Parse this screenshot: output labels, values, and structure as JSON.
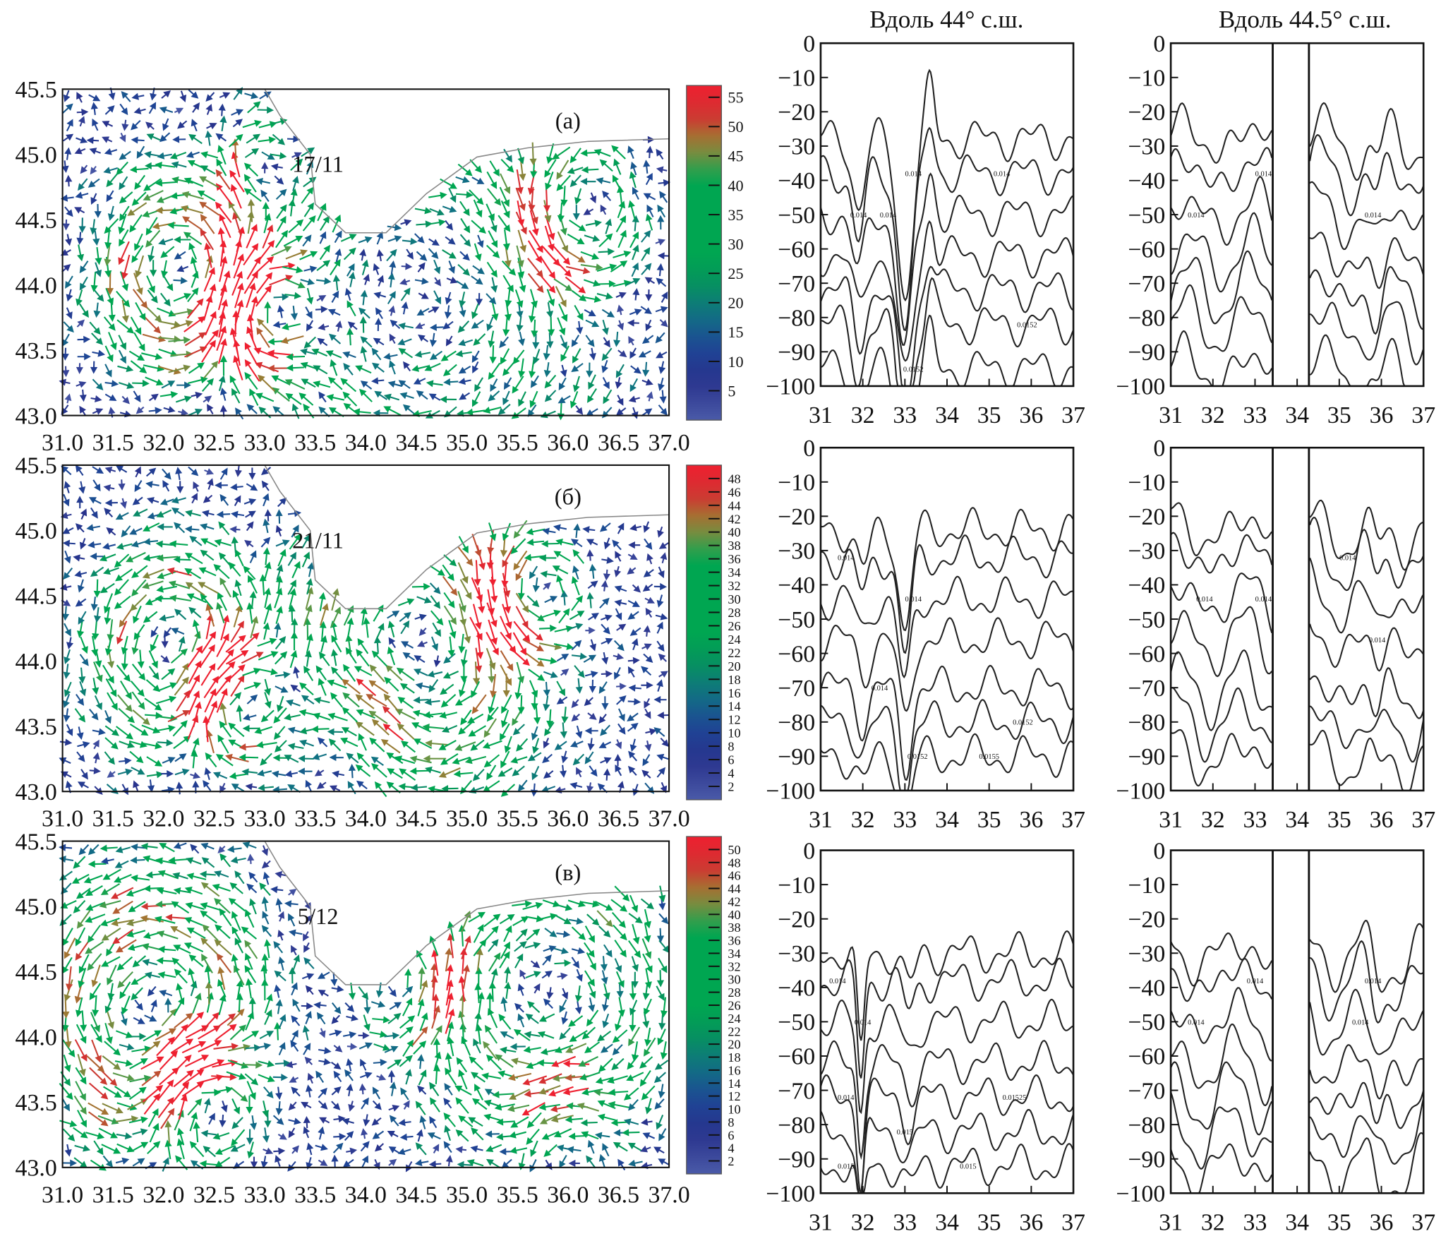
{
  "columns": {
    "col2_title": "Вдоль 44°  с.ш.",
    "col3_title": "Вдоль 44.5°  с.ш."
  },
  "colors": {
    "low": "#4a5aa8",
    "mid": "#00a651",
    "high": "#ee2030",
    "contour": "#222222",
    "coast": "#888888"
  },
  "chart_data": [
    {
      "type": "vector-field",
      "panel_label": "(а)",
      "date": "17/11",
      "xlim": [
        31.0,
        37.0
      ],
      "ylim": [
        43.0,
        45.5
      ],
      "xticks": [
        "31.0",
        "31.5",
        "32.0",
        "32.5",
        "33.0",
        "33.5",
        "34.0",
        "34.5",
        "35.0",
        "35.5",
        "36.0",
        "36.5",
        "37.0"
      ],
      "yticks": [
        "43.0",
        "43.5",
        "44.0",
        "44.5",
        "45.0",
        "45.5"
      ],
      "colorbar": {
        "range": [
          0,
          57
        ],
        "ticks": [
          "5",
          "10",
          "15",
          "20",
          "25",
          "30",
          "35",
          "40",
          "45",
          "50",
          "55"
        ]
      }
    },
    {
      "type": "vector-field",
      "panel_label": "(б)",
      "date": "21/11",
      "xlim": [
        31.0,
        37.0
      ],
      "ylim": [
        43.0,
        45.5
      ],
      "xticks": [
        "31.0",
        "31.5",
        "32.0",
        "32.5",
        "33.0",
        "33.5",
        "34.0",
        "34.5",
        "35.0",
        "35.5",
        "36.0",
        "36.5",
        "37.0"
      ],
      "yticks": [
        "43.0",
        "43.5",
        "44.0",
        "44.5",
        "45.0",
        "45.5"
      ],
      "colorbar": {
        "range": [
          0,
          50
        ],
        "ticks": [
          "2",
          "4",
          "6",
          "8",
          "10",
          "12",
          "14",
          "16",
          "18",
          "20",
          "22",
          "24",
          "26",
          "28",
          "30",
          "32",
          "34",
          "36",
          "38",
          "40",
          "42",
          "44",
          "46",
          "48"
        ]
      }
    },
    {
      "type": "vector-field",
      "panel_label": "(в)",
      "date": "5/12",
      "xlim": [
        31.0,
        37.0
      ],
      "ylim": [
        43.0,
        45.5
      ],
      "xticks": [
        "31.0",
        "31.5",
        "32.0",
        "32.5",
        "33.0",
        "33.5",
        "34.0",
        "34.5",
        "35.0",
        "35.5",
        "36.0",
        "36.5",
        "37.0"
      ],
      "yticks": [
        "43.0",
        "43.5",
        "44.0",
        "44.5",
        "45.0",
        "45.5"
      ],
      "colorbar": {
        "range": [
          0,
          52
        ],
        "ticks": [
          "2",
          "4",
          "6",
          "8",
          "10",
          "12",
          "14",
          "16",
          "18",
          "20",
          "22",
          "24",
          "26",
          "28",
          "30",
          "32",
          "34",
          "36",
          "38",
          "40",
          "42",
          "44",
          "46",
          "48",
          "50"
        ]
      }
    },
    {
      "type": "contour",
      "row": 1,
      "column": "44",
      "xlim": [
        31,
        37
      ],
      "ylim": [
        -100,
        0
      ],
      "xticks": [
        "31",
        "32",
        "33",
        "34",
        "35",
        "36",
        "37"
      ],
      "yticks": [
        "0",
        "−10",
        "−20",
        "−30",
        "−40",
        "−50",
        "−60",
        "−70",
        "−80",
        "−90",
        "−100"
      ],
      "contour_labels": [
        "0.014",
        "0.014",
        "0.014",
        "0.014",
        "0.0152",
        "0.0152"
      ]
    },
    {
      "type": "contour",
      "row": 1,
      "column": "44.5",
      "xlim": [
        31,
        37
      ],
      "ylim": [
        -100,
        0
      ],
      "xticks": [
        "31",
        "32",
        "33",
        "34",
        "35",
        "36",
        "37"
      ],
      "yticks": [
        "0",
        "−10",
        "−20",
        "−30",
        "−40",
        "−50",
        "−60",
        "−70",
        "−80",
        "−90",
        "−100"
      ],
      "contour_labels": [
        "0.014",
        "0.014",
        "0.014"
      ]
    },
    {
      "type": "contour",
      "row": 2,
      "column": "44",
      "xlim": [
        31,
        37
      ],
      "ylim": [
        -100,
        0
      ],
      "xticks": [
        "31",
        "32",
        "33",
        "34",
        "35",
        "36",
        "37"
      ],
      "yticks": [
        "0",
        "−10",
        "−20",
        "−30",
        "−40",
        "−50",
        "−60",
        "−70",
        "−80",
        "−90",
        "−100"
      ],
      "contour_labels": [
        "0.014",
        "0.014",
        "0.014",
        "0.0152",
        "0.0152",
        "0.0155"
      ]
    },
    {
      "type": "contour",
      "row": 2,
      "column": "44.5",
      "xlim": [
        31,
        37
      ],
      "ylim": [
        -100,
        0
      ],
      "xticks": [
        "31",
        "32",
        "33",
        "34",
        "35",
        "36",
        "37"
      ],
      "yticks": [
        "0",
        "−10",
        "−20",
        "−30",
        "−40",
        "−50",
        "−60",
        "−70",
        "−80",
        "−90",
        "−100"
      ],
      "contour_labels": [
        "0.014",
        "0.014",
        "0.014",
        "0.014"
      ]
    },
    {
      "type": "contour",
      "row": 3,
      "column": "44",
      "xlim": [
        31,
        37
      ],
      "ylim": [
        -100,
        0
      ],
      "xticks": [
        "31",
        "32",
        "33",
        "34",
        "35",
        "36",
        "37"
      ],
      "yticks": [
        "0",
        "−10",
        "−20",
        "−30",
        "−40",
        "−50",
        "−60",
        "−70",
        "−80",
        "−90",
        "−100"
      ],
      "contour_labels": [
        "0.014",
        "0.014",
        "0.014",
        "0.015",
        "0.01525",
        "0.015",
        "0.015"
      ]
    },
    {
      "type": "contour",
      "row": 3,
      "column": "44.5",
      "xlim": [
        31,
        37
      ],
      "ylim": [
        -100,
        0
      ],
      "xticks": [
        "31",
        "32",
        "33",
        "34",
        "35",
        "36",
        "37"
      ],
      "yticks": [
        "0",
        "−10",
        "−20",
        "−30",
        "−40",
        "−50",
        "−60",
        "−70",
        "−80",
        "−90",
        "−100"
      ],
      "contour_labels": [
        "0.014",
        "0.014",
        "0.014",
        "0.014"
      ]
    }
  ]
}
